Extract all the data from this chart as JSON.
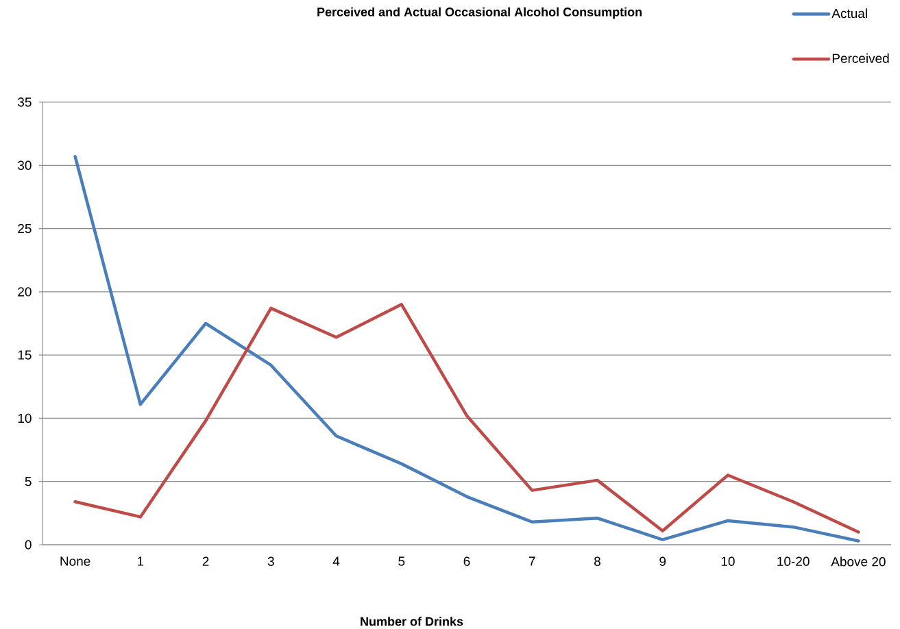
{
  "chart_data": {
    "type": "line",
    "title": "Perceived and Actual Occasional Alcohol Consumption",
    "xlabel": "Number of Drinks",
    "categories": [
      "None",
      "1",
      "2",
      "3",
      "4",
      "5",
      "6",
      "7",
      "8",
      "9",
      "10",
      "10-20",
      "Above 20"
    ],
    "series": [
      {
        "name": "Actual",
        "color": "#4a7ebb",
        "values": [
          30.7,
          11.1,
          17.5,
          14.2,
          8.6,
          6.4,
          3.8,
          1.8,
          2.1,
          0.4,
          1.9,
          1.4,
          0.3
        ]
      },
      {
        "name": "Perceived",
        "color": "#be4b48",
        "values": [
          3.4,
          2.2,
          9.8,
          18.7,
          16.4,
          19.0,
          10.2,
          4.3,
          5.1,
          1.1,
          5.5,
          3.4,
          1.0
        ]
      }
    ],
    "ylim": [
      0,
      35
    ],
    "yticks": [
      0,
      5,
      10,
      15,
      20,
      25,
      30,
      35
    ],
    "grid": "y",
    "legend": "top right",
    "marker": "none"
  }
}
